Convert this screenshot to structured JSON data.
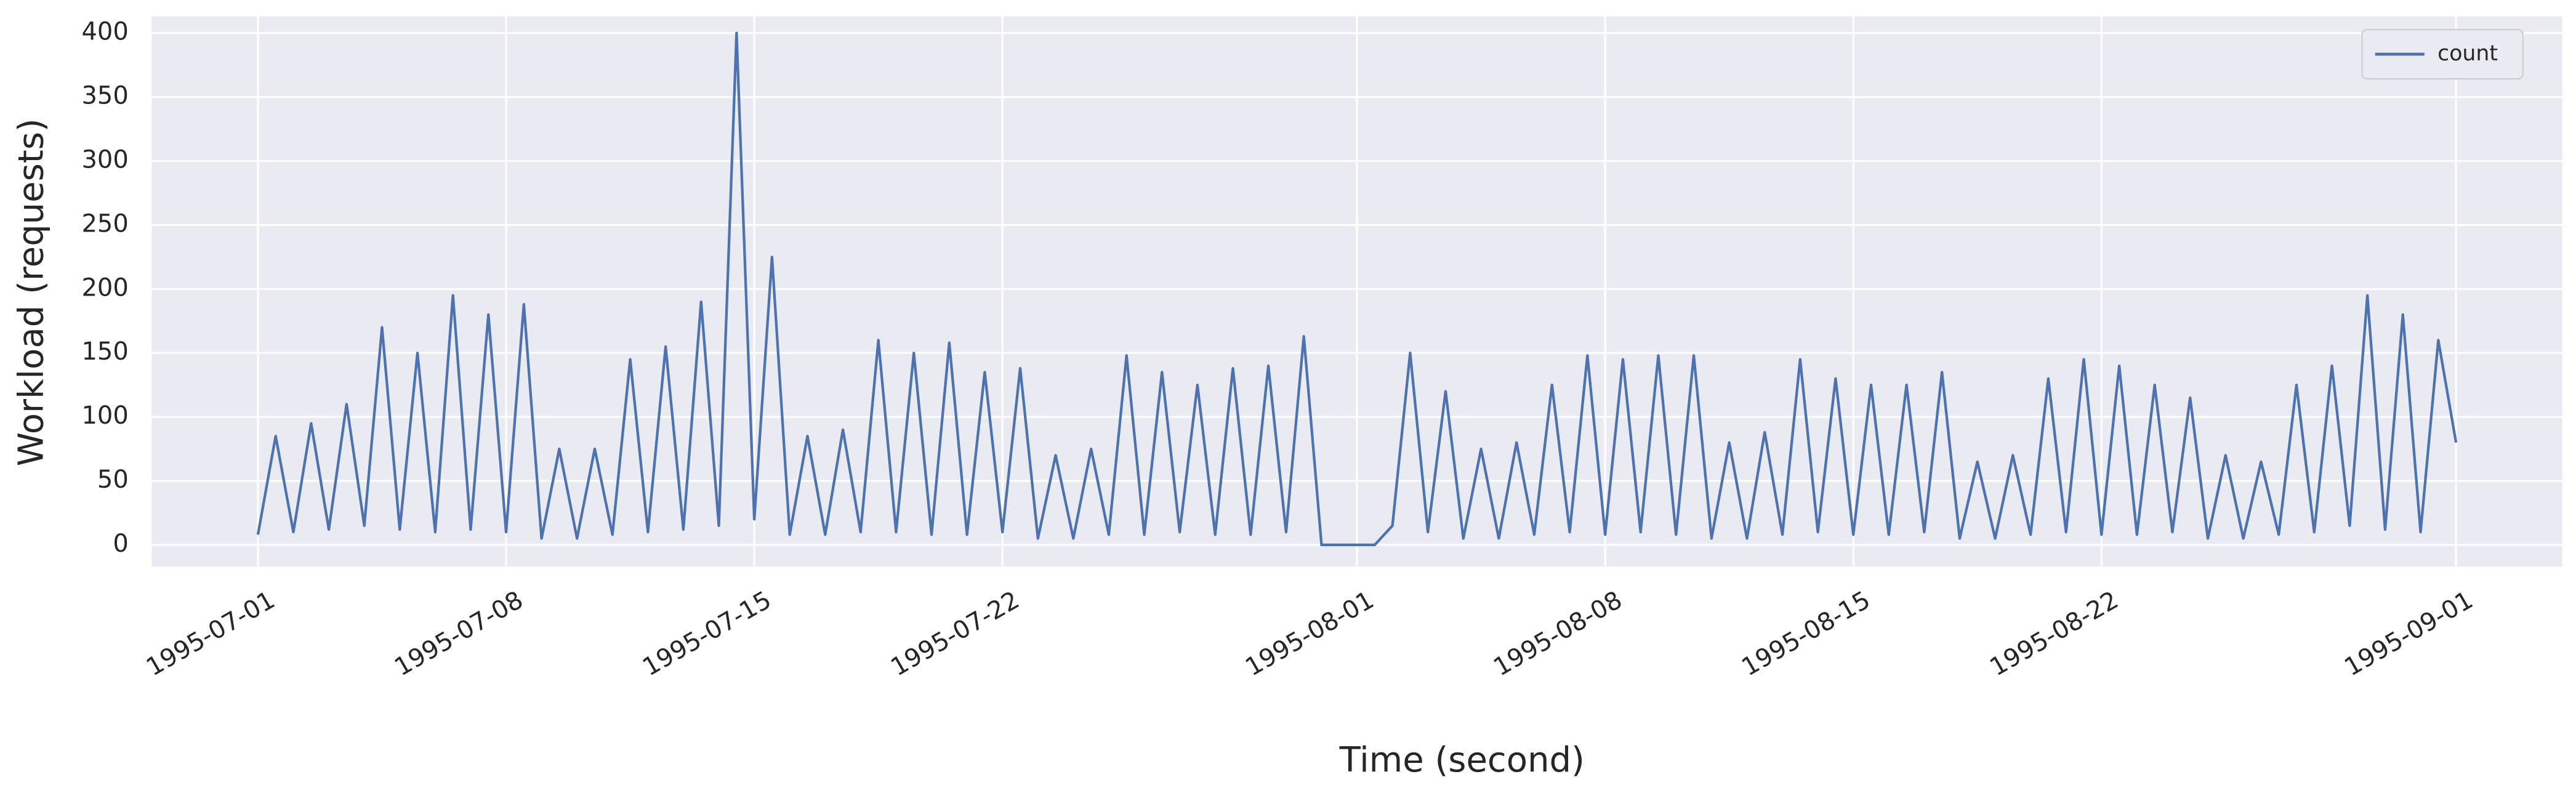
{
  "chart_data": {
    "type": "line",
    "x_label": "Time (second)",
    "y_label": "Workload (requests)",
    "x": [
      "1995-07-01T00:00",
      "1995-07-01T12:00",
      "1995-07-02T00:00",
      "1995-07-02T12:00",
      "1995-07-03T00:00",
      "1995-07-03T12:00",
      "1995-07-04T00:00",
      "1995-07-04T12:00",
      "1995-07-05T00:00",
      "1995-07-05T12:00",
      "1995-07-06T00:00",
      "1995-07-06T12:00",
      "1995-07-07T00:00",
      "1995-07-07T12:00",
      "1995-07-08T00:00",
      "1995-07-08T12:00",
      "1995-07-09T00:00",
      "1995-07-09T12:00",
      "1995-07-10T00:00",
      "1995-07-10T12:00",
      "1995-07-11T00:00",
      "1995-07-11T12:00",
      "1995-07-12T00:00",
      "1995-07-12T12:00",
      "1995-07-13T00:00",
      "1995-07-13T12:00",
      "1995-07-14T00:00",
      "1995-07-14T12:00",
      "1995-07-15T00:00",
      "1995-07-15T12:00",
      "1995-07-16T00:00",
      "1995-07-16T12:00",
      "1995-07-17T00:00",
      "1995-07-17T12:00",
      "1995-07-18T00:00",
      "1995-07-18T12:00",
      "1995-07-19T00:00",
      "1995-07-19T12:00",
      "1995-07-20T00:00",
      "1995-07-20T12:00",
      "1995-07-21T00:00",
      "1995-07-21T12:00",
      "1995-07-22T00:00",
      "1995-07-22T12:00",
      "1995-07-23T00:00",
      "1995-07-23T12:00",
      "1995-07-24T00:00",
      "1995-07-24T12:00",
      "1995-07-25T00:00",
      "1995-07-25T12:00",
      "1995-07-26T00:00",
      "1995-07-26T12:00",
      "1995-07-27T00:00",
      "1995-07-27T12:00",
      "1995-07-28T00:00",
      "1995-07-28T12:00",
      "1995-07-29T00:00",
      "1995-07-29T12:00",
      "1995-07-30T00:00",
      "1995-07-30T12:00",
      "1995-07-31T00:00",
      "1995-07-31T12:00",
      "1995-08-01T00:00",
      "1995-08-01T12:00",
      "1995-08-02T00:00",
      "1995-08-02T12:00",
      "1995-08-03T00:00",
      "1995-08-03T12:00",
      "1995-08-04T00:00",
      "1995-08-04T12:00",
      "1995-08-05T00:00",
      "1995-08-05T12:00",
      "1995-08-06T00:00",
      "1995-08-06T12:00",
      "1995-08-07T00:00",
      "1995-08-07T12:00",
      "1995-08-08T00:00",
      "1995-08-08T12:00",
      "1995-08-09T00:00",
      "1995-08-09T12:00",
      "1995-08-10T00:00",
      "1995-08-10T12:00",
      "1995-08-11T00:00",
      "1995-08-11T12:00",
      "1995-08-12T00:00",
      "1995-08-12T12:00",
      "1995-08-13T00:00",
      "1995-08-13T12:00",
      "1995-08-14T00:00",
      "1995-08-14T12:00",
      "1995-08-15T00:00",
      "1995-08-15T12:00",
      "1995-08-16T00:00",
      "1995-08-16T12:00",
      "1995-08-17T00:00",
      "1995-08-17T12:00",
      "1995-08-18T00:00",
      "1995-08-18T12:00",
      "1995-08-19T00:00",
      "1995-08-19T12:00",
      "1995-08-20T00:00",
      "1995-08-20T12:00",
      "1995-08-21T00:00",
      "1995-08-21T12:00",
      "1995-08-22T00:00",
      "1995-08-22T12:00",
      "1995-08-23T00:00",
      "1995-08-23T12:00",
      "1995-08-24T00:00",
      "1995-08-24T12:00",
      "1995-08-25T00:00",
      "1995-08-25T12:00",
      "1995-08-26T00:00",
      "1995-08-26T12:00",
      "1995-08-27T00:00",
      "1995-08-27T12:00",
      "1995-08-28T00:00",
      "1995-08-28T12:00",
      "1995-08-29T00:00",
      "1995-08-29T12:00",
      "1995-08-30T00:00",
      "1995-08-30T12:00",
      "1995-08-31T00:00",
      "1995-08-31T12:00",
      "1995-09-01T00:00"
    ],
    "series": [
      {
        "name": "count",
        "color": "#4c72b0",
        "values": [
          8,
          85,
          10,
          95,
          12,
          110,
          15,
          170,
          12,
          150,
          10,
          195,
          12,
          180,
          10,
          188,
          5,
          75,
          5,
          75,
          8,
          145,
          10,
          155,
          12,
          190,
          15,
          400,
          20,
          225,
          8,
          85,
          8,
          90,
          10,
          160,
          10,
          150,
          8,
          158,
          8,
          135,
          10,
          138,
          5,
          70,
          5,
          75,
          8,
          148,
          8,
          135,
          10,
          125,
          8,
          138,
          8,
          140,
          10,
          163,
          0,
          0,
          0,
          0,
          15,
          150,
          10,
          120,
          5,
          75,
          5,
          80,
          8,
          125,
          10,
          148,
          8,
          145,
          10,
          148,
          8,
          148,
          5,
          80,
          5,
          88,
          8,
          145,
          10,
          130,
          8,
          125,
          8,
          125,
          10,
          135,
          5,
          65,
          5,
          70,
          8,
          130,
          10,
          145,
          8,
          140,
          8,
          125,
          10,
          115,
          5,
          70,
          5,
          65,
          8,
          125,
          10,
          140,
          15,
          195,
          12,
          180,
          10,
          160,
          80
        ]
      }
    ],
    "xlim": [
      "1995-06-28",
      "1995-09-04"
    ],
    "xticks": [
      "1995-07-01",
      "1995-07-08",
      "1995-07-15",
      "1995-07-22",
      "1995-08-01",
      "1995-08-08",
      "1995-08-15",
      "1995-08-22",
      "1995-09-01"
    ],
    "ylim": [
      -17,
      413
    ],
    "yticks": [
      0,
      50,
      100,
      150,
      200,
      250,
      300,
      350,
      400
    ],
    "grid": true,
    "legend": "upper right"
  }
}
